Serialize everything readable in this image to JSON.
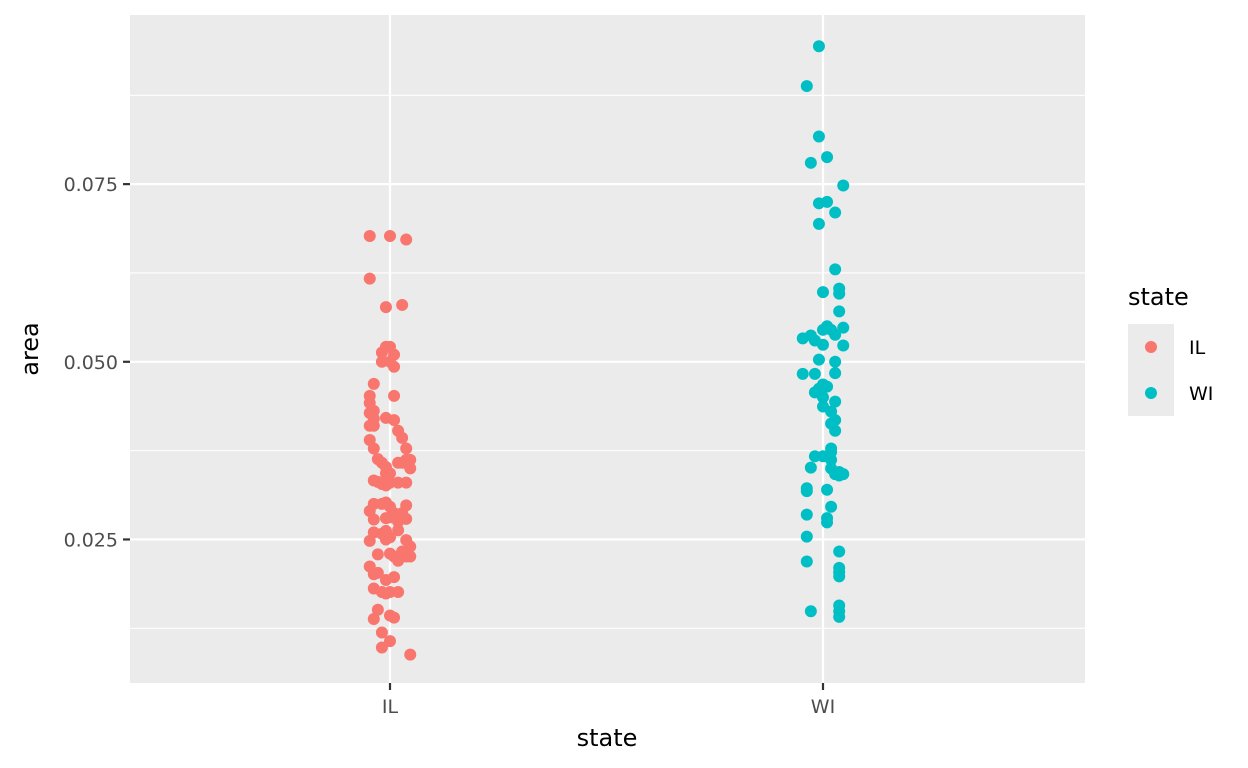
{
  "chart_data": {
    "type": "scatter",
    "title": "",
    "xlabel": "state",
    "ylabel": "area",
    "categories": [
      "IL",
      "WI"
    ],
    "ylim": [
      0.0048,
      0.0988
    ],
    "yticks": [
      {
        "value": 0.025,
        "label": "0.025"
      },
      {
        "value": 0.05,
        "label": "0.050"
      },
      {
        "value": 0.075,
        "label": "0.075"
      }
    ],
    "grid": true,
    "legend": {
      "title": "state",
      "position": "right"
    },
    "series": [
      {
        "name": "IL",
        "color": "#F8766D",
        "points": [
          {
            "x": -0.05,
            "y": 0.0677
          },
          {
            "x": 0.0,
            "y": 0.0677
          },
          {
            "x": 0.04,
            "y": 0.0672
          },
          {
            "x": -0.05,
            "y": 0.0617
          },
          {
            "x": -0.01,
            "y": 0.0577
          },
          {
            "x": 0.03,
            "y": 0.058
          },
          {
            "x": -0.01,
            "y": 0.0521
          },
          {
            "x": 0.0,
            "y": 0.0521
          },
          {
            "x": -0.02,
            "y": 0.0513
          },
          {
            "x": 0.01,
            "y": 0.051
          },
          {
            "x": -0.02,
            "y": 0.05
          },
          {
            "x": 0.0,
            "y": 0.05
          },
          {
            "x": 0.01,
            "y": 0.0493
          },
          {
            "x": -0.04,
            "y": 0.0469
          },
          {
            "x": 0.01,
            "y": 0.0452
          },
          {
            "x": -0.05,
            "y": 0.0452
          },
          {
            "x": -0.05,
            "y": 0.0442
          },
          {
            "x": -0.04,
            "y": 0.0431
          },
          {
            "x": -0.05,
            "y": 0.0428
          },
          {
            "x": -0.04,
            "y": 0.042
          },
          {
            "x": -0.01,
            "y": 0.0421
          },
          {
            "x": 0.01,
            "y": 0.0418
          },
          {
            "x": -0.05,
            "y": 0.041
          },
          {
            "x": -0.04,
            "y": 0.041
          },
          {
            "x": 0.02,
            "y": 0.0403
          },
          {
            "x": -0.05,
            "y": 0.039
          },
          {
            "x": 0.03,
            "y": 0.0393
          },
          {
            "x": -0.04,
            "y": 0.0378
          },
          {
            "x": 0.04,
            "y": 0.0378
          },
          {
            "x": -0.03,
            "y": 0.0363
          },
          {
            "x": -0.02,
            "y": 0.0358
          },
          {
            "x": -0.01,
            "y": 0.0352
          },
          {
            "x": 0.02,
            "y": 0.0358
          },
          {
            "x": 0.03,
            "y": 0.0358
          },
          {
            "x": 0.04,
            "y": 0.0362
          },
          {
            "x": 0.05,
            "y": 0.0362
          },
          {
            "x": -0.01,
            "y": 0.0343
          },
          {
            "x": 0.0,
            "y": 0.0343
          },
          {
            "x": 0.05,
            "y": 0.035
          },
          {
            "x": -0.04,
            "y": 0.0333
          },
          {
            "x": -0.03,
            "y": 0.0331
          },
          {
            "x": -0.02,
            "y": 0.0328
          },
          {
            "x": -0.01,
            "y": 0.0326
          },
          {
            "x": 0.0,
            "y": 0.033
          },
          {
            "x": 0.02,
            "y": 0.033
          },
          {
            "x": 0.04,
            "y": 0.033
          },
          {
            "x": -0.04,
            "y": 0.03
          },
          {
            "x": -0.02,
            "y": 0.03
          },
          {
            "x": -0.01,
            "y": 0.0302
          },
          {
            "x": 0.0,
            "y": 0.0296
          },
          {
            "x": 0.04,
            "y": 0.0298
          },
          {
            "x": -0.05,
            "y": 0.029
          },
          {
            "x": 0.01,
            "y": 0.0287
          },
          {
            "x": 0.03,
            "y": 0.0287
          },
          {
            "x": -0.04,
            "y": 0.0278
          },
          {
            "x": -0.01,
            "y": 0.028
          },
          {
            "x": 0.0,
            "y": 0.0281
          },
          {
            "x": 0.02,
            "y": 0.0275
          },
          {
            "x": 0.04,
            "y": 0.0279
          },
          {
            "x": -0.04,
            "y": 0.026
          },
          {
            "x": -0.02,
            "y": 0.0258
          },
          {
            "x": -0.01,
            "y": 0.0262
          },
          {
            "x": 0.02,
            "y": 0.0263
          },
          {
            "x": -0.05,
            "y": 0.0248
          },
          {
            "x": -0.01,
            "y": 0.025
          },
          {
            "x": 0.0,
            "y": 0.0253
          },
          {
            "x": 0.04,
            "y": 0.0249
          },
          {
            "x": 0.05,
            "y": 0.024
          },
          {
            "x": -0.03,
            "y": 0.0229
          },
          {
            "x": 0.0,
            "y": 0.023
          },
          {
            "x": 0.01,
            "y": 0.0226
          },
          {
            "x": 0.02,
            "y": 0.0226
          },
          {
            "x": 0.03,
            "y": 0.0233
          },
          {
            "x": 0.04,
            "y": 0.0226
          },
          {
            "x": 0.02,
            "y": 0.022
          },
          {
            "x": 0.05,
            "y": 0.0226
          },
          {
            "x": -0.05,
            "y": 0.0212
          },
          {
            "x": -0.04,
            "y": 0.0201
          },
          {
            "x": -0.03,
            "y": 0.0203
          },
          {
            "x": -0.01,
            "y": 0.0193
          },
          {
            "x": 0.01,
            "y": 0.0197
          },
          {
            "x": -0.04,
            "y": 0.0181
          },
          {
            "x": -0.02,
            "y": 0.0176
          },
          {
            "x": -0.01,
            "y": 0.0174
          },
          {
            "x": 0.0,
            "y": 0.0176
          },
          {
            "x": 0.02,
            "y": 0.0176
          },
          {
            "x": -0.03,
            "y": 0.0151
          },
          {
            "x": 0.0,
            "y": 0.0143
          },
          {
            "x": 0.01,
            "y": 0.014
          },
          {
            "x": -0.04,
            "y": 0.0138
          },
          {
            "x": -0.02,
            "y": 0.0119
          },
          {
            "x": 0.0,
            "y": 0.0107
          },
          {
            "x": -0.02,
            "y": 0.0098
          },
          {
            "x": 0.05,
            "y": 0.0088
          }
        ]
      },
      {
        "name": "WI",
        "color": "#00BFC4",
        "points": [
          {
            "x": -0.01,
            "y": 0.0944
          },
          {
            "x": -0.04,
            "y": 0.0888
          },
          {
            "x": -0.01,
            "y": 0.0817
          },
          {
            "x": 0.01,
            "y": 0.0788
          },
          {
            "x": -0.03,
            "y": 0.078
          },
          {
            "x": 0.05,
            "y": 0.0748
          },
          {
            "x": -0.01,
            "y": 0.0723
          },
          {
            "x": 0.01,
            "y": 0.0725
          },
          {
            "x": 0.03,
            "y": 0.071
          },
          {
            "x": -0.01,
            "y": 0.0694
          },
          {
            "x": 0.03,
            "y": 0.063
          },
          {
            "x": 0.04,
            "y": 0.0603
          },
          {
            "x": 0.0,
            "y": 0.0598
          },
          {
            "x": 0.04,
            "y": 0.0596
          },
          {
            "x": 0.04,
            "y": 0.0571
          },
          {
            "x": 0.01,
            "y": 0.055
          },
          {
            "x": 0.0,
            "y": 0.0545
          },
          {
            "x": 0.05,
            "y": 0.0548
          },
          {
            "x": -0.05,
            "y": 0.0533
          },
          {
            "x": -0.03,
            "y": 0.0537
          },
          {
            "x": 0.02,
            "y": 0.0545
          },
          {
            "x": 0.03,
            "y": 0.0538
          },
          {
            "x": -0.02,
            "y": 0.053
          },
          {
            "x": 0.0,
            "y": 0.0524
          },
          {
            "x": 0.05,
            "y": 0.0523
          },
          {
            "x": -0.01,
            "y": 0.0503
          },
          {
            "x": 0.03,
            "y": 0.05
          },
          {
            "x": -0.05,
            "y": 0.0483
          },
          {
            "x": -0.02,
            "y": 0.0483
          },
          {
            "x": 0.03,
            "y": 0.0484
          },
          {
            "x": -0.01,
            "y": 0.0462
          },
          {
            "x": 0.0,
            "y": 0.0468
          },
          {
            "x": 0.01,
            "y": 0.0465
          },
          {
            "x": -0.02,
            "y": 0.0457
          },
          {
            "x": 0.0,
            "y": 0.045
          },
          {
            "x": 0.03,
            "y": 0.0444
          },
          {
            "x": 0.0,
            "y": 0.0437
          },
          {
            "x": 0.02,
            "y": 0.043
          },
          {
            "x": 0.03,
            "y": 0.0418
          },
          {
            "x": 0.02,
            "y": 0.0413
          },
          {
            "x": 0.03,
            "y": 0.0403
          },
          {
            "x": 0.02,
            "y": 0.0378
          },
          {
            "x": -0.02,
            "y": 0.0367
          },
          {
            "x": 0.0,
            "y": 0.0367
          },
          {
            "x": 0.02,
            "y": 0.0373
          },
          {
            "x": 0.02,
            "y": 0.0362
          },
          {
            "x": -0.03,
            "y": 0.0351
          },
          {
            "x": 0.02,
            "y": 0.035
          },
          {
            "x": 0.03,
            "y": 0.0342
          },
          {
            "x": 0.05,
            "y": 0.0342
          },
          {
            "x": 0.04,
            "y": 0.0345
          },
          {
            "x": 0.04,
            "y": 0.034
          },
          {
            "x": -0.04,
            "y": 0.0322
          },
          {
            "x": -0.04,
            "y": 0.0318
          },
          {
            "x": 0.01,
            "y": 0.032
          },
          {
            "x": 0.02,
            "y": 0.0296
          },
          {
            "x": -0.04,
            "y": 0.0285
          },
          {
            "x": 0.01,
            "y": 0.028
          },
          {
            "x": 0.01,
            "y": 0.0274
          },
          {
            "x": -0.04,
            "y": 0.0254
          },
          {
            "x": 0.04,
            "y": 0.0233
          },
          {
            "x": -0.04,
            "y": 0.0219
          },
          {
            "x": 0.04,
            "y": 0.021
          },
          {
            "x": 0.04,
            "y": 0.0204
          },
          {
            "x": 0.04,
            "y": 0.0198
          },
          {
            "x": 0.04,
            "y": 0.0157
          },
          {
            "x": -0.03,
            "y": 0.0149
          },
          {
            "x": 0.04,
            "y": 0.0149
          },
          {
            "x": 0.04,
            "y": 0.0141
          }
        ]
      }
    ]
  }
}
